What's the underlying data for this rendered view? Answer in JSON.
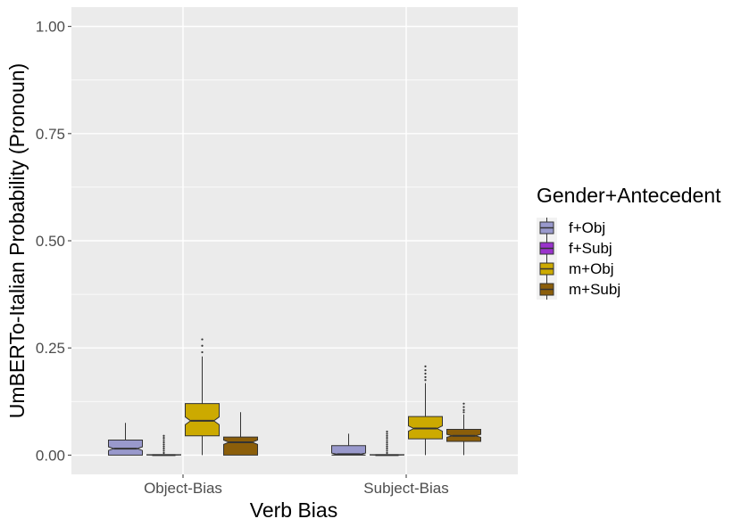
{
  "chart_data": {
    "type": "boxplot",
    "title": "",
    "xlabel": "Verb Bias",
    "ylabel": "UmBERTo-Italian Probability (Pronoun)",
    "ylim": [
      -0.045,
      1.045
    ],
    "yticks": [
      0.0,
      0.25,
      0.5,
      0.75,
      1.0
    ],
    "ytick_labels": [
      "0.00",
      "0.25",
      "0.50",
      "0.75",
      "1.00"
    ],
    "categories": [
      "Object-Bias",
      "Subject-Bias"
    ],
    "grid": true,
    "notched": true,
    "legend": {
      "title": "Gender+Antecedent",
      "position": "right"
    },
    "series": [
      {
        "name": "f+Obj",
        "color": "#9999cc",
        "boxes": [
          {
            "min": 0.0,
            "q1": 0.0,
            "median": 0.015,
            "q3": 0.035,
            "max": 0.075,
            "outliers": []
          },
          {
            "min": 0.0,
            "q1": 0.0,
            "median": 0.002,
            "q3": 0.022,
            "max": 0.05,
            "outliers": []
          }
        ]
      },
      {
        "name": "f+Subj",
        "color": "#9933cc",
        "boxes": [
          {
            "min": 0.0,
            "q1": 0.0,
            "median": 0.0,
            "q3": 0.001,
            "max": 0.002,
            "outliers": [
              0.005,
              0.01,
              0.015,
              0.02,
              0.025,
              0.03,
              0.035,
              0.04,
              0.045
            ]
          },
          {
            "min": 0.0,
            "q1": 0.0,
            "median": 0.0,
            "q3": 0.001,
            "max": 0.002,
            "outliers": [
              0.005,
              0.01,
              0.015,
              0.02,
              0.025,
              0.03,
              0.035,
              0.04,
              0.045,
              0.05,
              0.055
            ]
          }
        ]
      },
      {
        "name": "m+Obj",
        "color": "#ccaa00",
        "boxes": [
          {
            "min": 0.0,
            "q1": 0.045,
            "median": 0.08,
            "q3": 0.12,
            "max": 0.23,
            "outliers": [
              0.24,
              0.255,
              0.27
            ]
          },
          {
            "min": 0.0,
            "q1": 0.038,
            "median": 0.062,
            "q3": 0.09,
            "max": 0.168,
            "outliers": [
              0.175,
              0.182,
              0.19,
              0.198,
              0.207
            ]
          }
        ]
      },
      {
        "name": "m+Subj",
        "color": "#8b5e0a",
        "boxes": [
          {
            "min": 0.0,
            "q1": 0.0,
            "median": 0.03,
            "q3": 0.042,
            "max": 0.1,
            "outliers": []
          },
          {
            "min": 0.0,
            "q1": 0.032,
            "median": 0.045,
            "q3": 0.06,
            "max": 0.095,
            "outliers": [
              0.1,
              0.105,
              0.112,
              0.12
            ]
          }
        ]
      }
    ]
  }
}
